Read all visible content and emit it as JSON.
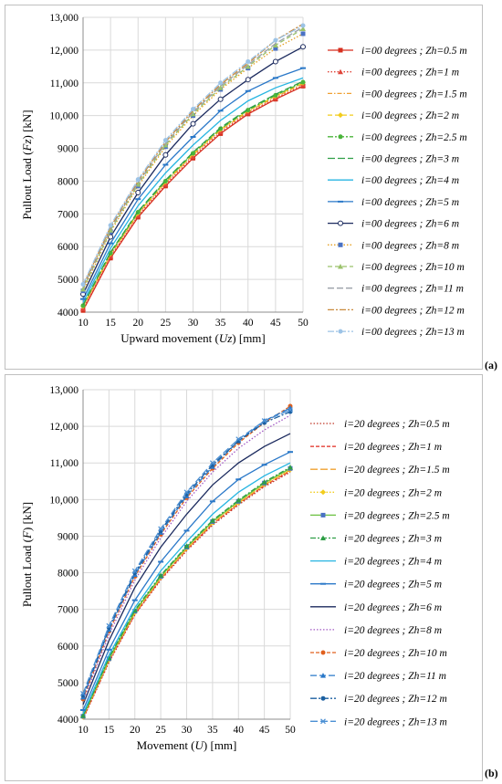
{
  "chart_data": [
    {
      "type": "line",
      "panel_label": "(a)",
      "ylabel_parts": [
        "Pullout  Load (",
        "Fz",
        ") [kN]"
      ],
      "xlabel_parts": [
        "Upward movement (",
        "Uz",
        ") [mm]"
      ],
      "xlim": [
        10,
        50
      ],
      "ylim": [
        4000,
        13000
      ],
      "x_ticks": [
        "10",
        "15",
        "20",
        "25",
        "30",
        "35",
        "40",
        "45",
        "50"
      ],
      "y_ticks": [
        "4000",
        "5000",
        "6000",
        "7000",
        "8000",
        "9000",
        "10,000",
        "11,000",
        "12,000",
        "13,000"
      ],
      "grid": true,
      "legend_position": "right",
      "x": [
        10,
        15,
        20,
        25,
        30,
        35,
        40,
        45,
        50
      ],
      "series": [
        {
          "name": "i=00 degrees ; Zh=0.5 m",
          "color": "#d62f1e",
          "dash": "",
          "marker": "square",
          "values": [
            4050,
            5650,
            6900,
            7850,
            8700,
            9450,
            10050,
            10500,
            10900
          ]
        },
        {
          "name": "i=00 degrees ; Zh=1 m",
          "color": "#e0453a",
          "dash": "1.5,2",
          "marker": "triangle",
          "values": [
            4100,
            5700,
            6950,
            7900,
            8750,
            9500,
            10080,
            10530,
            10930
          ]
        },
        {
          "name": "i=00 degrees ; Zh=1.5 m",
          "color": "#f0a030",
          "dash": "5,2,1.5,2",
          "marker": "",
          "values": [
            4150,
            5750,
            7000,
            7950,
            8800,
            9550,
            10120,
            10570,
            10970
          ]
        },
        {
          "name": "i=00 degrees ; Zh=2 m",
          "color": "#f2cc1c",
          "dash": "5,3",
          "marker": "diamond",
          "values": [
            4180,
            5780,
            7030,
            7980,
            8830,
            9580,
            10150,
            10600,
            11000
          ]
        },
        {
          "name": "i=00 degrees ; Zh=2.5 m",
          "color": "#4bb53b",
          "dash": "6,2,2,2",
          "marker": "circle",
          "values": [
            4200,
            5800,
            7050,
            8000,
            8850,
            9600,
            10170,
            10620,
            11020
          ]
        },
        {
          "name": "i=00 degrees ; Zh=3 m",
          "color": "#2e9e45",
          "dash": "8,3",
          "marker": "",
          "values": [
            4220,
            5830,
            7080,
            8030,
            8880,
            9630,
            10200,
            10650,
            11050
          ]
        },
        {
          "name": "i=00 degrees ; Zh=4 m",
          "color": "#27b5e2",
          "dash": "",
          "marker": "",
          "values": [
            4300,
            5950,
            7250,
            8250,
            9100,
            9850,
            10450,
            10850,
            11150
          ]
        },
        {
          "name": "i=00 degrees ; Zh=5 m",
          "color": "#2a78c8",
          "dash": "",
          "marker": "dash",
          "values": [
            4400,
            6100,
            7450,
            8500,
            9350,
            10150,
            10750,
            11150,
            11450
          ]
        },
        {
          "name": "i=00 degrees ; Zh=6 m",
          "color": "#1b2a5e",
          "dash": "",
          "marker": "circle-open",
          "values": [
            4550,
            6300,
            7650,
            8800,
            9750,
            10500,
            11100,
            11650,
            12100
          ]
        },
        {
          "name": "i=00 degrees ; Zh=8 m",
          "color": "#e6a020",
          "dash": "1.5,2",
          "marker": "square-blue",
          "values": [
            4650,
            6450,
            7850,
            9050,
            10000,
            10800,
            11450,
            12050,
            12500
          ]
        },
        {
          "name": "i=00 degrees ; Zh=10 m",
          "color": "#9bc26b",
          "dash": "5,3",
          "marker": "triangle",
          "values": [
            4700,
            6500,
            7900,
            9100,
            10050,
            10850,
            11500,
            12150,
            12650
          ]
        },
        {
          "name": "i=00 degrees ; Zh=11 m",
          "color": "#9aa0a8",
          "dash": "7,3",
          "marker": "",
          "values": [
            4750,
            6550,
            7950,
            9150,
            10100,
            10900,
            11550,
            12200,
            12700
          ]
        },
        {
          "name": "i=00 degrees ; Zh=12 m",
          "color": "#c98a3c",
          "dash": "7,2,2,2",
          "marker": "",
          "values": [
            4800,
            6600,
            8000,
            9200,
            10150,
            10950,
            11600,
            12300,
            12800
          ]
        },
        {
          "name": "i=00 degrees ; Zh=13 m",
          "color": "#9cc3e6",
          "dash": "7,2,2,2",
          "marker": "circle",
          "values": [
            4850,
            6650,
            8050,
            9250,
            10200,
            11000,
            11650,
            12300,
            12750
          ]
        }
      ]
    },
    {
      "type": "line",
      "panel_label": "(b)",
      "ylabel_parts": [
        "Pullout  Load (",
        "F",
        ") [kN]"
      ],
      "xlabel_parts": [
        "Movement (",
        "U",
        ") [mm]"
      ],
      "xlim": [
        10,
        50
      ],
      "ylim": [
        4000,
        13000
      ],
      "x_ticks": [
        "10",
        "15",
        "20",
        "25",
        "30",
        "35",
        "40",
        "45",
        "50"
      ],
      "y_ticks": [
        "4000",
        "5000",
        "6000",
        "7000",
        "8000",
        "9000",
        "10,000",
        "11,000",
        "12,000",
        "13,000"
      ],
      "grid": true,
      "legend_position": "right",
      "x": [
        10,
        15,
        20,
        25,
        30,
        35,
        40,
        45,
        50
      ],
      "series": [
        {
          "name": "i=20 degrees ; Zh=0.5 m",
          "color": "#c0392b",
          "dash": "1.5,2",
          "marker": "",
          "values": [
            4000,
            5550,
            6850,
            7800,
            8600,
            9300,
            9850,
            10350,
            10750
          ]
        },
        {
          "name": "i=20 degrees ; Zh=1 m",
          "color": "#e0281e",
          "dash": "4,2",
          "marker": "",
          "values": [
            4020,
            5580,
            6870,
            7830,
            8630,
            9330,
            9880,
            10380,
            10780
          ]
        },
        {
          "name": "i=20 degrees ; Zh=1.5 m",
          "color": "#f0a030",
          "dash": "8,3",
          "marker": "",
          "values": [
            4050,
            5600,
            6900,
            7850,
            8650,
            9350,
            9900,
            10400,
            10800
          ]
        },
        {
          "name": "i=20 degrees ; Zh=2 m",
          "color": "#f2cc1c",
          "dash": "1.5,2",
          "marker": "diamond",
          "values": [
            4060,
            5620,
            6920,
            7870,
            8670,
            9370,
            9920,
            10420,
            10820
          ]
        },
        {
          "name": "i=20 degrees ; Zh=2.5 m",
          "color": "#6abf3f",
          "dash": "",
          "marker": "square-blue",
          "values": [
            4080,
            5650,
            6950,
            7900,
            8700,
            9400,
            9950,
            10450,
            10850
          ]
        },
        {
          "name": "i=20 degrees ; Zh=3 m",
          "color": "#2e9e45",
          "dash": "6,2,2,2",
          "marker": "triangle",
          "values": [
            4100,
            5680,
            6980,
            7930,
            8730,
            9430,
            9980,
            10480,
            10880
          ]
        },
        {
          "name": "i=20 degrees ; Zh=4 m",
          "color": "#27b5e2",
          "dash": "",
          "marker": "",
          "values": [
            4150,
            5750,
            7050,
            8050,
            8850,
            9600,
            10200,
            10650,
            11000
          ]
        },
        {
          "name": "i=20 degrees ; Zh=5 m",
          "color": "#2a78c8",
          "dash": "",
          "marker": "dash",
          "values": [
            4250,
            5900,
            7250,
            8300,
            9150,
            9950,
            10550,
            10950,
            11300
          ]
        },
        {
          "name": "i=20 degrees ; Zh=6 m",
          "color": "#1b2a5e",
          "dash": "",
          "marker": "",
          "values": [
            4400,
            6150,
            7600,
            8700,
            9600,
            10400,
            11000,
            11450,
            11800
          ]
        },
        {
          "name": "i=20 degrees ; Zh=8 m",
          "color": "#a259c4",
          "dash": "1.5,2",
          "marker": "",
          "values": [
            4500,
            6300,
            7800,
            8950,
            9950,
            10750,
            11400,
            11900,
            12300
          ]
        },
        {
          "name": "i=20 degrees ; Zh=10 m",
          "color": "#e0601e",
          "dash": "4,2",
          "marker": "circle",
          "values": [
            4550,
            6400,
            7900,
            9050,
            10050,
            10850,
            11550,
            12100,
            12550
          ]
        },
        {
          "name": "i=20 degrees ; Zh=11 m",
          "color": "#2a78c8",
          "dash": "7,3",
          "marker": "triangle",
          "values": [
            4600,
            6450,
            7950,
            9100,
            10100,
            10900,
            11600,
            12150,
            12500
          ]
        },
        {
          "name": "i=20 degrees ; Zh=12 m",
          "color": "#1b5fa0",
          "dash": "7,2,2,2",
          "marker": "circle",
          "values": [
            4650,
            6500,
            8000,
            9150,
            10150,
            10950,
            11600,
            12100,
            12400
          ]
        },
        {
          "name": "i=20 degrees ; Zh=13 m",
          "color": "#4a8fd4",
          "dash": "8,3",
          "marker": "x",
          "values": [
            4700,
            6550,
            8050,
            9200,
            10200,
            11000,
            11650,
            12150,
            12450
          ]
        }
      ]
    }
  ]
}
